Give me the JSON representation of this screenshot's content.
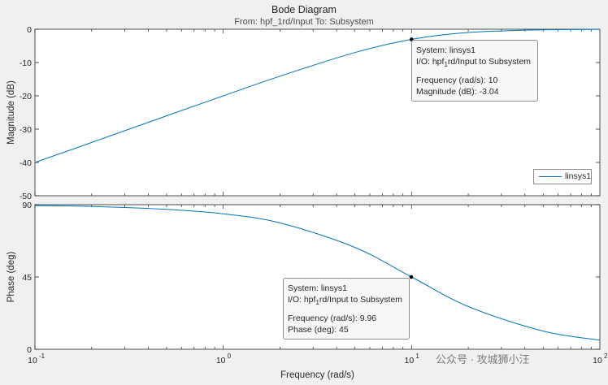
{
  "chart_data": {
    "type": "line",
    "title": "Bode Diagram",
    "subtitle": "From: hpf_1rd/Input  To: Subsystem",
    "xlabel": "Frequency  (rad/s)",
    "xscale": "log",
    "xlim": [
      0.1,
      100
    ],
    "x_ticks": [
      {
        "value": 0.1,
        "base": "10",
        "exp": "-1"
      },
      {
        "value": 1,
        "base": "10",
        "exp": "0"
      },
      {
        "value": 10,
        "base": "10",
        "exp": "1"
      },
      {
        "value": 100,
        "base": "10",
        "exp": "2"
      }
    ],
    "panels": [
      {
        "name": "magnitude",
        "ylabel": "Magnitude (dB)",
        "ylim": [
          -50,
          0
        ],
        "yticks": [
          0,
          -10,
          -20,
          -30,
          -40,
          -50
        ],
        "series": [
          {
            "name": "linsys1",
            "color": "#0072bd",
            "x": [
              0.1,
              0.2,
              0.5,
              1,
              2,
              5,
              10,
              20,
              50,
              100
            ],
            "y": [
              -40.0,
              -34.0,
              -26.0,
              -20.0,
              -14.1,
              -7.0,
              -3.04,
              -0.97,
              -0.17,
              -0.04
            ]
          }
        ],
        "datatip": {
          "x": 10,
          "y": -3.04,
          "lines": [
            "System: linsys1",
            "I/O: hpf",
            "rd/Input to Subsystem",
            "Frequency (rad/s): 10",
            "Magnitude (dB): -3.04"
          ],
          "sub": "1"
        },
        "legend": {
          "label": "linsys1",
          "position": "bottom-right"
        }
      },
      {
        "name": "phase",
        "ylabel": "Phase (deg)",
        "ylim": [
          0,
          90
        ],
        "yticks": [
          0,
          45,
          90
        ],
        "series": [
          {
            "name": "linsys1",
            "color": "#0072bd",
            "x": [
              0.1,
              0.2,
              0.5,
              1,
              2,
              5,
              10,
              20,
              50,
              100
            ],
            "y": [
              89.4,
              88.9,
              87.1,
              84.3,
              78.7,
              63.4,
              45.0,
              26.6,
              11.3,
              5.7
            ]
          }
        ],
        "datatip": {
          "x": 9.96,
          "y": 45,
          "lines": [
            "System: linsys1",
            "I/O: hpf",
            "rd/Input to Subsystem",
            "Frequency (rad/s): 9.96",
            "Phase (deg): 45"
          ],
          "sub": "1"
        }
      }
    ],
    "grid": false
  },
  "watermark": "公众号 · 攻城狮小汪"
}
